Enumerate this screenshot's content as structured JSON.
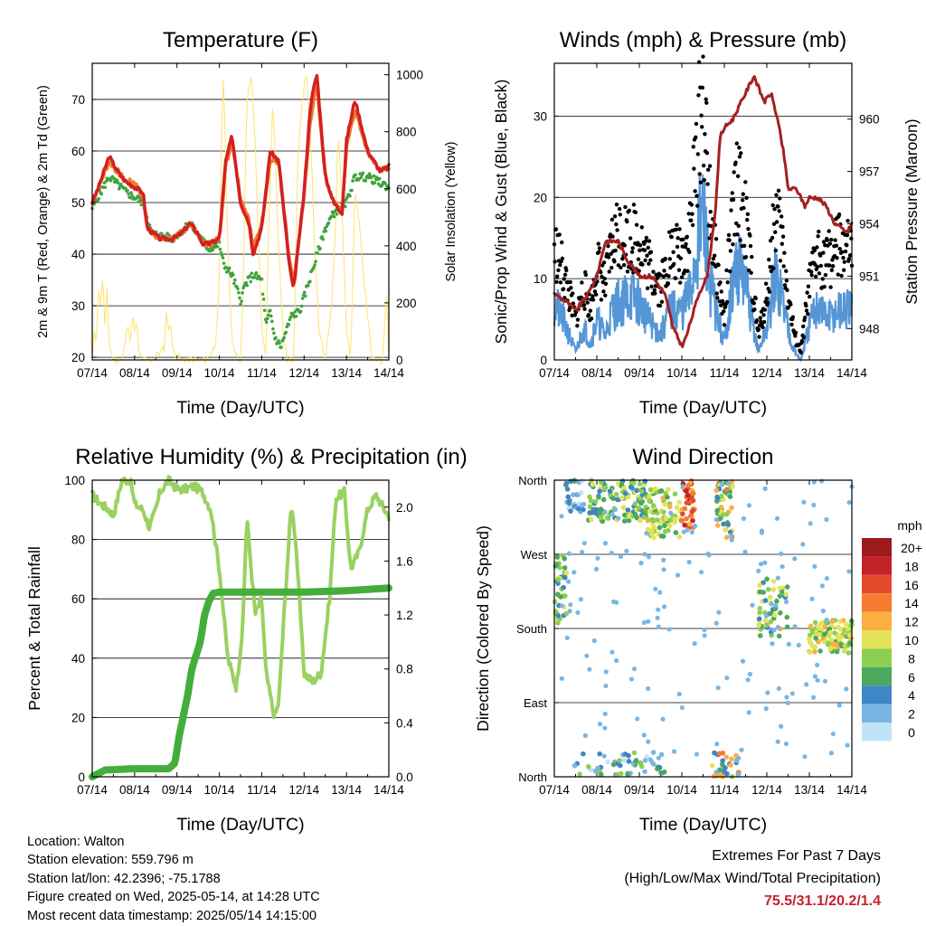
{
  "x_tick_labels": [
    "07/14",
    "08/14",
    "09/14",
    "10/14",
    "11/14",
    "12/14",
    "13/14",
    "14/14"
  ],
  "colors": {
    "temp_2m": "#d42020",
    "temp_9m": "#f07a2a",
    "dewpoint": "#3fa33f",
    "solar": "#ffe36e",
    "wind": "#5596d6",
    "gust": "#000000",
    "pressure": "#a52020",
    "rh": "#9bd160",
    "precip": "#44ad3b"
  },
  "footer": {
    "location": "Location: Walton",
    "elevation": "Station elevation: 559.796 m",
    "latlon": "Station lat/lon: 42.2396; -75.1788",
    "created": "Figure created on Wed, 2025-05-14, at 14:28 UTC",
    "recent": "Most recent data timestamp: 2025/05/14 14:15:00"
  },
  "extremes": {
    "title": "Extremes For Past 7 Days",
    "subtitle": "(High/Low/Max Wind/Total Precipitation)",
    "values": "75.5/31.1/20.2/1.4"
  },
  "chart_data": [
    {
      "type": "line",
      "title": "Temperature (F)",
      "xlabel": "Time (Day/UTC)",
      "ylabel": "2m & 9m T (Red, Orange) & 2m Td (Green)",
      "y2label": "Solar Insolation (Yellow)",
      "xlim": [
        0,
        7
      ],
      "ylim": [
        19.5,
        77
      ],
      "y2lim": [
        0,
        1040
      ],
      "yticks": [
        20,
        30,
        40,
        50,
        60,
        70
      ],
      "y2ticks": [
        0,
        200,
        400,
        600,
        800,
        1000
      ],
      "grid": true,
      "series": [
        {
          "x": [
            0,
            0.15,
            0.4,
            0.6,
            0.8,
            1.0,
            1.2,
            1.3,
            1.6,
            1.9,
            2.1,
            2.3,
            2.5,
            2.6,
            2.75,
            3.0,
            3.15,
            3.3,
            3.5,
            3.7,
            3.8,
            4.0,
            4.2,
            4.4,
            4.65,
            4.75,
            5.0,
            5.15,
            5.3,
            5.5,
            5.7,
            5.9,
            6.0,
            6.2,
            6.5,
            6.8,
            7.0
          ],
          "y": [
            50,
            53,
            59,
            56,
            54,
            53,
            52,
            45,
            43,
            43,
            44,
            46,
            44,
            42,
            42,
            43,
            58,
            63,
            50,
            46,
            40,
            45,
            60,
            58,
            38,
            33,
            52,
            69,
            75,
            55,
            50,
            48,
            62,
            70,
            60,
            56,
            57
          ]
        },
        {
          "x": [
            0,
            0.15,
            0.4,
            0.6,
            0.8,
            1.0,
            1.2,
            1.3,
            1.6,
            1.9,
            2.1,
            2.3,
            2.5,
            2.6,
            2.75,
            3.0,
            3.15,
            3.3,
            3.5,
            3.7,
            3.8,
            4.0,
            4.2,
            4.4,
            4.65,
            4.75,
            5.0,
            5.15,
            5.3,
            5.5,
            5.7,
            5.9,
            6.0,
            6.2,
            6.5,
            6.8,
            7.0
          ],
          "y": [
            50,
            53,
            58,
            56,
            54,
            54,
            51,
            45,
            43,
            43,
            44,
            46,
            44,
            42,
            42,
            43,
            57,
            62,
            51,
            47,
            41,
            46,
            58,
            58,
            39,
            34,
            51,
            66,
            73,
            55,
            50,
            48,
            61,
            68,
            60,
            56,
            57
          ]
        },
        {
          "x": [
            0,
            0.4,
            0.8,
            1.2,
            1.4,
            1.9,
            2.3,
            2.75,
            3.0,
            3.1,
            3.3,
            3.5,
            3.6,
            3.8,
            4.0,
            4.1,
            4.2,
            4.3,
            4.45,
            4.7,
            4.9,
            5.2,
            5.5,
            5.7,
            6.0,
            6.2,
            6.5,
            7.0
          ],
          "y": [
            49,
            55,
            52,
            50,
            44,
            43,
            46,
            41,
            42,
            38,
            36,
            31,
            34,
            36,
            35,
            26,
            29,
            24,
            22,
            28,
            29,
            37,
            45,
            48,
            50,
            55,
            55,
            53
          ]
        },
        {
          "x": [
            0,
            0.05,
            0.1,
            0.15,
            0.2,
            0.25,
            0.3,
            0.35,
            0.4,
            0.5,
            0.7,
            0.8,
            0.85,
            0.9,
            0.95,
            1.0,
            1.05,
            1.1,
            1.2,
            1.4,
            1.7,
            1.75,
            1.8,
            1.85,
            1.9,
            2.1,
            2.7,
            2.9,
            3.0,
            3.05,
            3.1,
            3.15,
            3.2,
            3.3,
            3.5,
            3.55,
            3.65,
            3.75,
            3.85,
            4.0,
            4.1,
            4.15,
            4.2,
            4.25,
            4.3,
            4.4,
            4.5,
            4.6,
            4.75,
            4.85,
            4.95,
            5.05,
            5.15,
            5.25,
            5.35,
            5.5,
            5.65,
            5.75,
            5.8,
            5.85,
            5.9,
            5.95,
            6.0,
            6.1,
            6.2,
            6.3,
            6.4,
            6.6,
            6.85,
            6.9,
            6.95,
            7.0
          ],
          "y": [
            0,
            110,
            60,
            270,
            180,
            300,
            100,
            250,
            50,
            0,
            0,
            80,
            150,
            40,
            170,
            90,
            130,
            20,
            0,
            0,
            40,
            180,
            90,
            150,
            30,
            0,
            0,
            50,
            250,
            800,
            1000,
            700,
            400,
            50,
            0,
            200,
            900,
            1000,
            750,
            100,
            0,
            400,
            600,
            900,
            800,
            400,
            100,
            0,
            0,
            700,
            900,
            1000,
            800,
            400,
            100,
            0,
            200,
            500,
            800,
            700,
            500,
            300,
            100,
            0,
            600,
            500,
            300,
            0,
            0,
            100,
            250,
            0
          ]
        }
      ]
    },
    {
      "type": "line",
      "title": "Winds (mph) & Pressure (mb)",
      "xlabel": "Time (Day/UTC)",
      "ylabel": "Sonic/Prop Wind & Gust (Blue, Black)",
      "y2label": "Station Pressure (Maroon)",
      "xlim": [
        0,
        7
      ],
      "ylim": [
        0,
        36.5
      ],
      "y2lim": [
        946.2,
        963.2
      ],
      "yticks": [
        0,
        10,
        20,
        30
      ],
      "y2ticks": [
        948,
        951,
        954,
        957,
        960
      ],
      "grid": true,
      "series": [
        {
          "x": [
            0,
            0.2,
            0.35,
            0.5,
            0.7,
            0.85,
            1.0,
            1.2,
            1.35,
            1.5,
            1.8,
            2.0,
            2.2,
            2.5,
            2.7,
            3.0,
            3.2,
            3.35,
            3.5,
            3.65,
            3.8,
            4.0,
            4.1,
            4.3,
            4.5,
            4.65,
            4.8,
            5.0,
            5.2,
            5.35,
            5.5,
            5.65,
            5.8,
            6.0,
            6.2,
            6.4,
            6.7,
            7.0
          ],
          "y": [
            7,
            5,
            3,
            1,
            4,
            2,
            5,
            3,
            6,
            7,
            8,
            7,
            5,
            3,
            6,
            6,
            8,
            14,
            18,
            10,
            6,
            2,
            6,
            12,
            9,
            5,
            1,
            4,
            10,
            8,
            4,
            1,
            0,
            4,
            7,
            5,
            6,
            6
          ]
        },
        {
          "x": [
            0,
            0.2,
            0.35,
            0.5,
            0.7,
            0.85,
            1.0,
            1.2,
            1.35,
            1.5,
            1.8,
            2.0,
            2.2,
            2.5,
            2.7,
            3.0,
            3.2,
            3.35,
            3.5,
            3.65,
            3.8,
            4.0,
            4.1,
            4.3,
            4.5,
            4.65,
            4.8,
            5.0,
            5.2,
            5.35,
            5.5,
            5.65,
            5.8,
            6.0,
            6.2,
            6.4,
            6.7,
            7.0
          ],
          "y": [
            14,
            11,
            8,
            5,
            9,
            6,
            12,
            9,
            14,
            16,
            15,
            15,
            12,
            9,
            13,
            13,
            16,
            26,
            32,
            19,
            12,
            5,
            12,
            22,
            17,
            10,
            3,
            8,
            18,
            15,
            8,
            3,
            1,
            9,
            13,
            12,
            14,
            13
          ]
        },
        {
          "x": [
            0,
            0.3,
            0.5,
            0.8,
            1.0,
            1.2,
            1.5,
            1.7,
            2.0,
            2.3,
            2.6,
            2.8,
            3.0,
            3.1,
            3.4,
            3.6,
            3.8,
            3.9,
            4.0,
            4.2,
            4.5,
            4.7,
            4.85,
            4.95,
            5.1,
            5.25,
            5.4,
            5.5,
            5.7,
            5.9,
            6.0,
            6.2,
            6.4,
            6.6,
            6.9,
            7.0
          ],
          "y": [
            950,
            949.5,
            949,
            950,
            951,
            953,
            953,
            952,
            951,
            951,
            950,
            948,
            947,
            947.5,
            950,
            951,
            955,
            959,
            959.5,
            960,
            961.5,
            962.5,
            961.5,
            961,
            961.5,
            960,
            958,
            956,
            956,
            955,
            955.5,
            955.5,
            955,
            954,
            953.5,
            954
          ]
        }
      ]
    },
    {
      "type": "line",
      "title": "Relative Humidity (%) & Precipitation (in)",
      "xlabel": "Time (Day/UTC)",
      "ylabel": "Percent & Total Rainfall",
      "xlim": [
        0,
        7
      ],
      "ylim": [
        0,
        100
      ],
      "y2lim": [
        0,
        2.2
      ],
      "yticks": [
        0,
        20,
        40,
        60,
        80,
        100
      ],
      "y2ticks": [
        0.0,
        0.4,
        0.8,
        1.2,
        1.6,
        2.0
      ],
      "grid": true,
      "series": [
        {
          "x": [
            0,
            0.2,
            0.4,
            0.5,
            0.7,
            0.9,
            1.0,
            1.2,
            1.35,
            1.5,
            1.6,
            1.8,
            2.0,
            2.2,
            2.4,
            2.6,
            2.8,
            3.0,
            3.2,
            3.4,
            3.55,
            3.65,
            3.75,
            3.85,
            4.0,
            4.1,
            4.3,
            4.4,
            4.55,
            4.7,
            4.8,
            5.0,
            5.2,
            5.4,
            5.6,
            5.75,
            5.95,
            6.1,
            6.3,
            6.5,
            6.7,
            6.9,
            7.0
          ],
          "y": [
            95,
            92,
            90,
            88,
            100,
            100,
            92,
            90,
            84,
            90,
            96,
            100,
            97,
            97,
            98,
            96,
            90,
            70,
            40,
            30,
            50,
            88,
            70,
            55,
            60,
            35,
            20,
            25,
            60,
            92,
            80,
            35,
            32,
            35,
            60,
            94,
            96,
            70,
            76,
            90,
            95,
            90,
            88
          ]
        },
        {
          "x": [
            0,
            0.3,
            1.0,
            1.5,
            1.8,
            1.95,
            2.05,
            2.15,
            2.25,
            2.35,
            2.45,
            2.55,
            2.65,
            2.75,
            2.85,
            3.0,
            3.3,
            4.0,
            5.0,
            6.0,
            7.0
          ],
          "y": [
            0,
            0.05,
            0.06,
            0.06,
            0.06,
            0.1,
            0.3,
            0.45,
            0.6,
            0.8,
            0.9,
            1.0,
            1.2,
            1.3,
            1.36,
            1.37,
            1.37,
            1.37,
            1.37,
            1.38,
            1.4
          ]
        }
      ]
    },
    {
      "type": "scatter",
      "title": "Wind Direction",
      "xlabel": "Time (Day/UTC)",
      "ylabel": "Direction (Colored By Speed)",
      "xlim": [
        0,
        7
      ],
      "ylim": [
        0,
        360
      ],
      "yticks": [
        "North",
        "East",
        "South",
        "West",
        "North"
      ],
      "legend_title": "mph",
      "legend_labels": [
        "20+",
        "18",
        "16",
        "14",
        "12",
        "10",
        "8",
        "6",
        "4",
        "2",
        "0"
      ],
      "legend_colors": [
        "#9c1b1b",
        "#c4222a",
        "#e34a2c",
        "#f57b30",
        "#fbae42",
        "#e3e35a",
        "#8ccf52",
        "#4ca85c",
        "#3f86c6",
        "#7ab6e3",
        "#bfe4f7"
      ],
      "clusters": [
        {
          "x0": 0,
          "x1": 0.3,
          "y0": 180,
          "y1": 270,
          "speed_range": [
            4,
            10
          ],
          "count": 40
        },
        {
          "x0": 0.25,
          "x1": 0.7,
          "y0": 320,
          "y1": 360,
          "speed_range": [
            0,
            6
          ],
          "count": 30
        },
        {
          "x0": 0.8,
          "x1": 2.2,
          "y0": 310,
          "y1": 360,
          "speed_range": [
            4,
            10
          ],
          "count": 120
        },
        {
          "x0": 2.2,
          "x1": 3.0,
          "y0": 290,
          "y1": 350,
          "speed_range": [
            6,
            12
          ],
          "count": 80
        },
        {
          "x0": 3.0,
          "x1": 3.3,
          "y0": 300,
          "y1": 360,
          "speed_range": [
            12,
            18
          ],
          "count": 40
        },
        {
          "x0": 3.8,
          "x1": 4.2,
          "y0": 290,
          "y1": 360,
          "speed_range": [
            4,
            14
          ],
          "count": 50
        },
        {
          "x0": 4.8,
          "x1": 5.5,
          "y0": 170,
          "y1": 240,
          "speed_range": [
            4,
            12
          ],
          "count": 50
        },
        {
          "x0": 6.0,
          "x1": 7.0,
          "y0": 150,
          "y1": 190,
          "speed_range": [
            6,
            12
          ],
          "count": 110
        },
        {
          "x0": 0.4,
          "x1": 2.6,
          "y0": 0,
          "y1": 30,
          "speed_range": [
            0,
            8
          ],
          "count": 50
        },
        {
          "x0": 3.7,
          "x1": 4.4,
          "y0": 0,
          "y1": 30,
          "speed_range": [
            2,
            14
          ],
          "count": 30
        }
      ]
    }
  ]
}
